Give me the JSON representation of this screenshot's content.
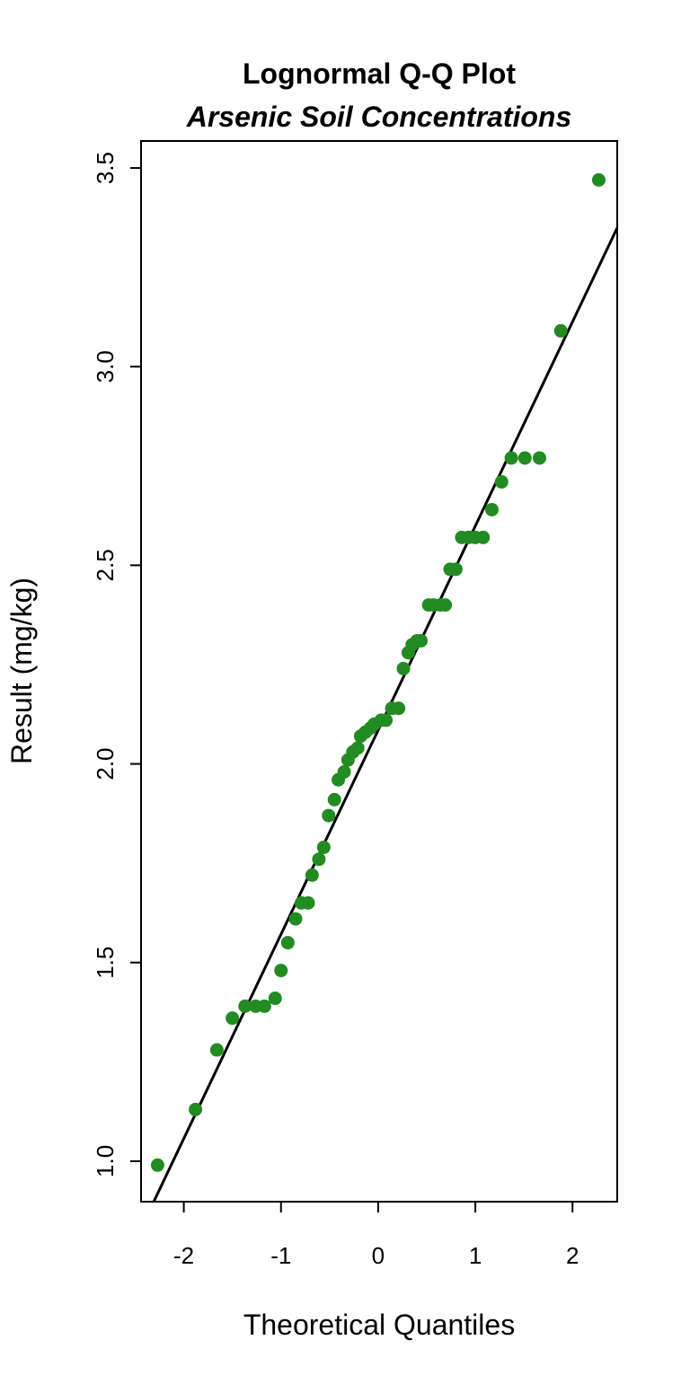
{
  "chart_data": {
    "type": "scatter",
    "title": "Lognormal Q-Q Plot",
    "subtitle": "Arsenic Soil Concentrations",
    "x_label": "Theoretical Quantiles",
    "y_label": "Result (mg/kg)",
    "color": "#228B22",
    "x": [
      -2.27,
      -1.88,
      -1.66,
      -1.5,
      -1.37,
      -1.26,
      -1.17,
      -1.06,
      -1.0,
      -0.93,
      -0.85,
      -0.79,
      -0.72,
      -0.68,
      -0.61,
      -0.56,
      -0.51,
      -0.45,
      -0.41,
      -0.35,
      -0.31,
      -0.26,
      -0.21,
      -0.18,
      -0.13,
      -0.08,
      -0.04,
      0.03,
      0.08,
      0.14,
      0.21,
      0.26,
      0.31,
      0.35,
      0.4,
      0.44,
      0.52,
      0.57,
      0.64,
      0.69,
      0.74,
      0.8,
      0.86,
      0.93,
      1.0,
      1.08,
      1.17,
      1.27,
      1.37,
      1.51,
      1.66,
      1.88,
      2.27
    ],
    "values": [
      0.99,
      1.13,
      1.28,
      1.36,
      1.39,
      1.39,
      1.39,
      1.41,
      1.48,
      1.55,
      1.61,
      1.65,
      1.65,
      1.72,
      1.76,
      1.79,
      1.87,
      1.91,
      1.96,
      1.98,
      2.01,
      2.03,
      2.04,
      2.07,
      2.08,
      2.09,
      2.1,
      2.11,
      2.11,
      2.14,
      2.14,
      2.24,
      2.28,
      2.3,
      2.31,
      2.31,
      2.4,
      2.4,
      2.4,
      2.4,
      2.49,
      2.49,
      2.57,
      2.57,
      2.57,
      2.57,
      2.64,
      2.71,
      2.77,
      2.77,
      2.77,
      3.09,
      3.47
    ],
    "reference_line": {
      "intercept": 2.085,
      "slope": 0.514,
      "color": "#000000"
    },
    "xlim": [
      -2.44,
      2.46
    ],
    "ylim": [
      0.898,
      3.568
    ],
    "xticks": [
      -2,
      -1,
      0,
      1,
      2
    ],
    "yticks": [
      {
        "value": 1,
        "label": "1.0"
      },
      {
        "value": 1.5,
        "label": "1.5"
      },
      {
        "value": 2,
        "label": "2.0"
      },
      {
        "value": 2.5,
        "label": "2.5"
      },
      {
        "value": 3,
        "label": "3.0"
      },
      {
        "value": 3.5,
        "label": "3.5"
      }
    ]
  }
}
